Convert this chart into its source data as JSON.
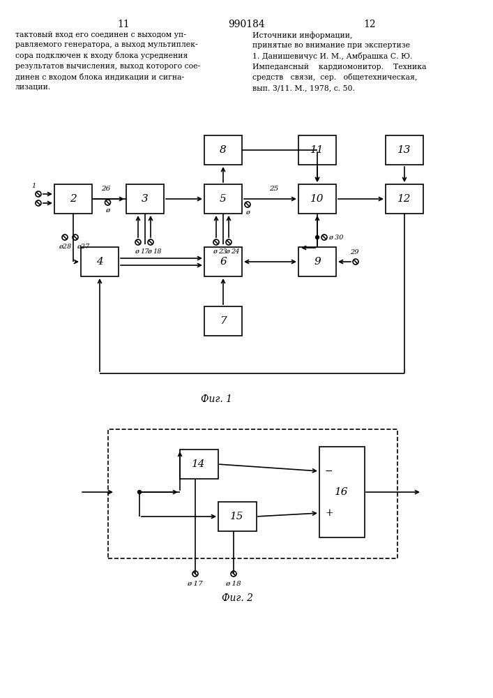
{
  "page_number_left": "11",
  "page_number_center": "990184",
  "page_number_right": "12",
  "text_left": "тактовый вход его соединен с выходом уп-\nравляемого генератора, а выход мультиплек-\nсора подключен к входу блока усреднения\nрезультатов вычисления, выход которого сое-\nдинен с входом блока индикации и сигна-\nлизации.",
  "text_right": "Источники информации,\nпринятые во внимание при экспертизе\n1. Данишевичус И. М., Амбрашка С. Ю.\nИмпедансный    кардиомонитор.    Техника\nсредств   связи,  сер.   общетехническая,\nвып. 3/11. М., 1978, с. 50.",
  "fig1_caption": "Фиг. 1",
  "fig2_caption": "Фиг. 2",
  "background_color": "#ffffff",
  "line_color": "#000000"
}
